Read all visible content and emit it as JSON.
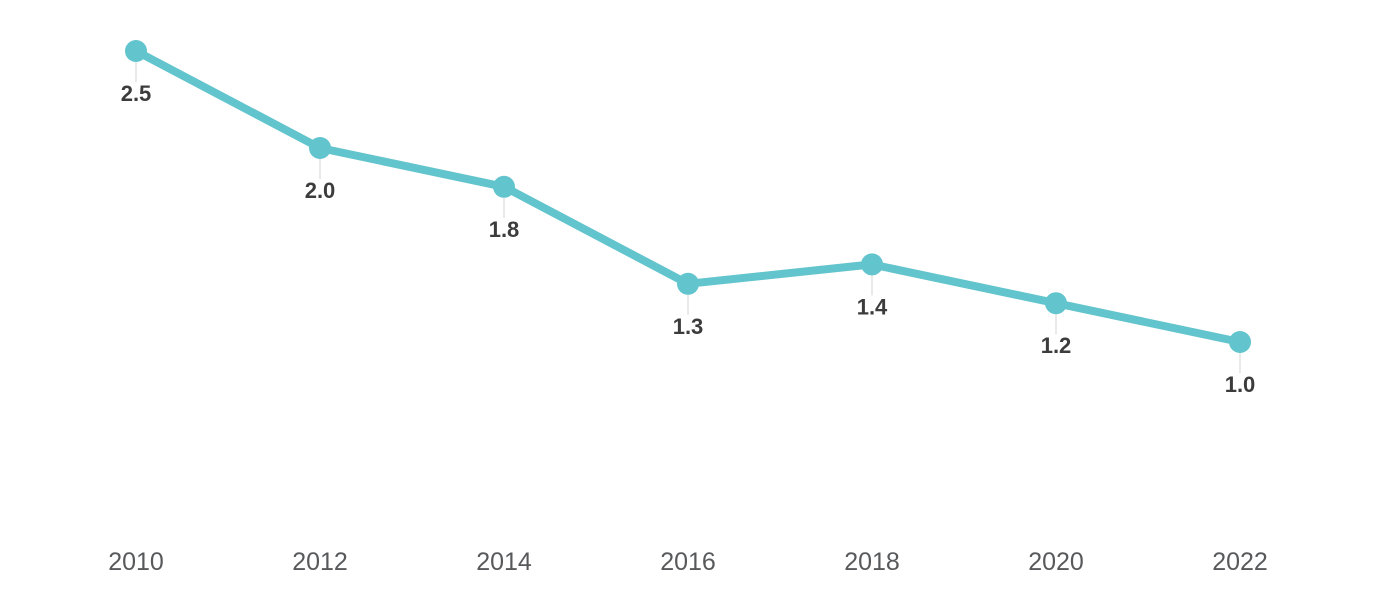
{
  "chart_data": {
    "type": "line",
    "title": "",
    "xlabel": "",
    "ylabel": "",
    "categories": [
      "2010",
      "2012",
      "2014",
      "2016",
      "2018",
      "2020",
      "2022"
    ],
    "values": [
      2.5,
      2.0,
      1.8,
      1.3,
      1.4,
      1.2,
      1.0
    ],
    "data_labels": [
      "2.5",
      "2.0",
      "1.8",
      "1.3",
      "1.4",
      "1.2",
      "1.0"
    ],
    "value_range_shown": [
      1.0,
      2.5
    ],
    "grid": false,
    "legend": "none",
    "axes_drawn": false,
    "colors": {
      "line": "#62c4cc",
      "marker": "#62c4cc",
      "data_label": "#3c3c3c",
      "axis_label": "#58595b",
      "leader_tick": "#e9e9e9",
      "background": "#ffffff"
    }
  }
}
